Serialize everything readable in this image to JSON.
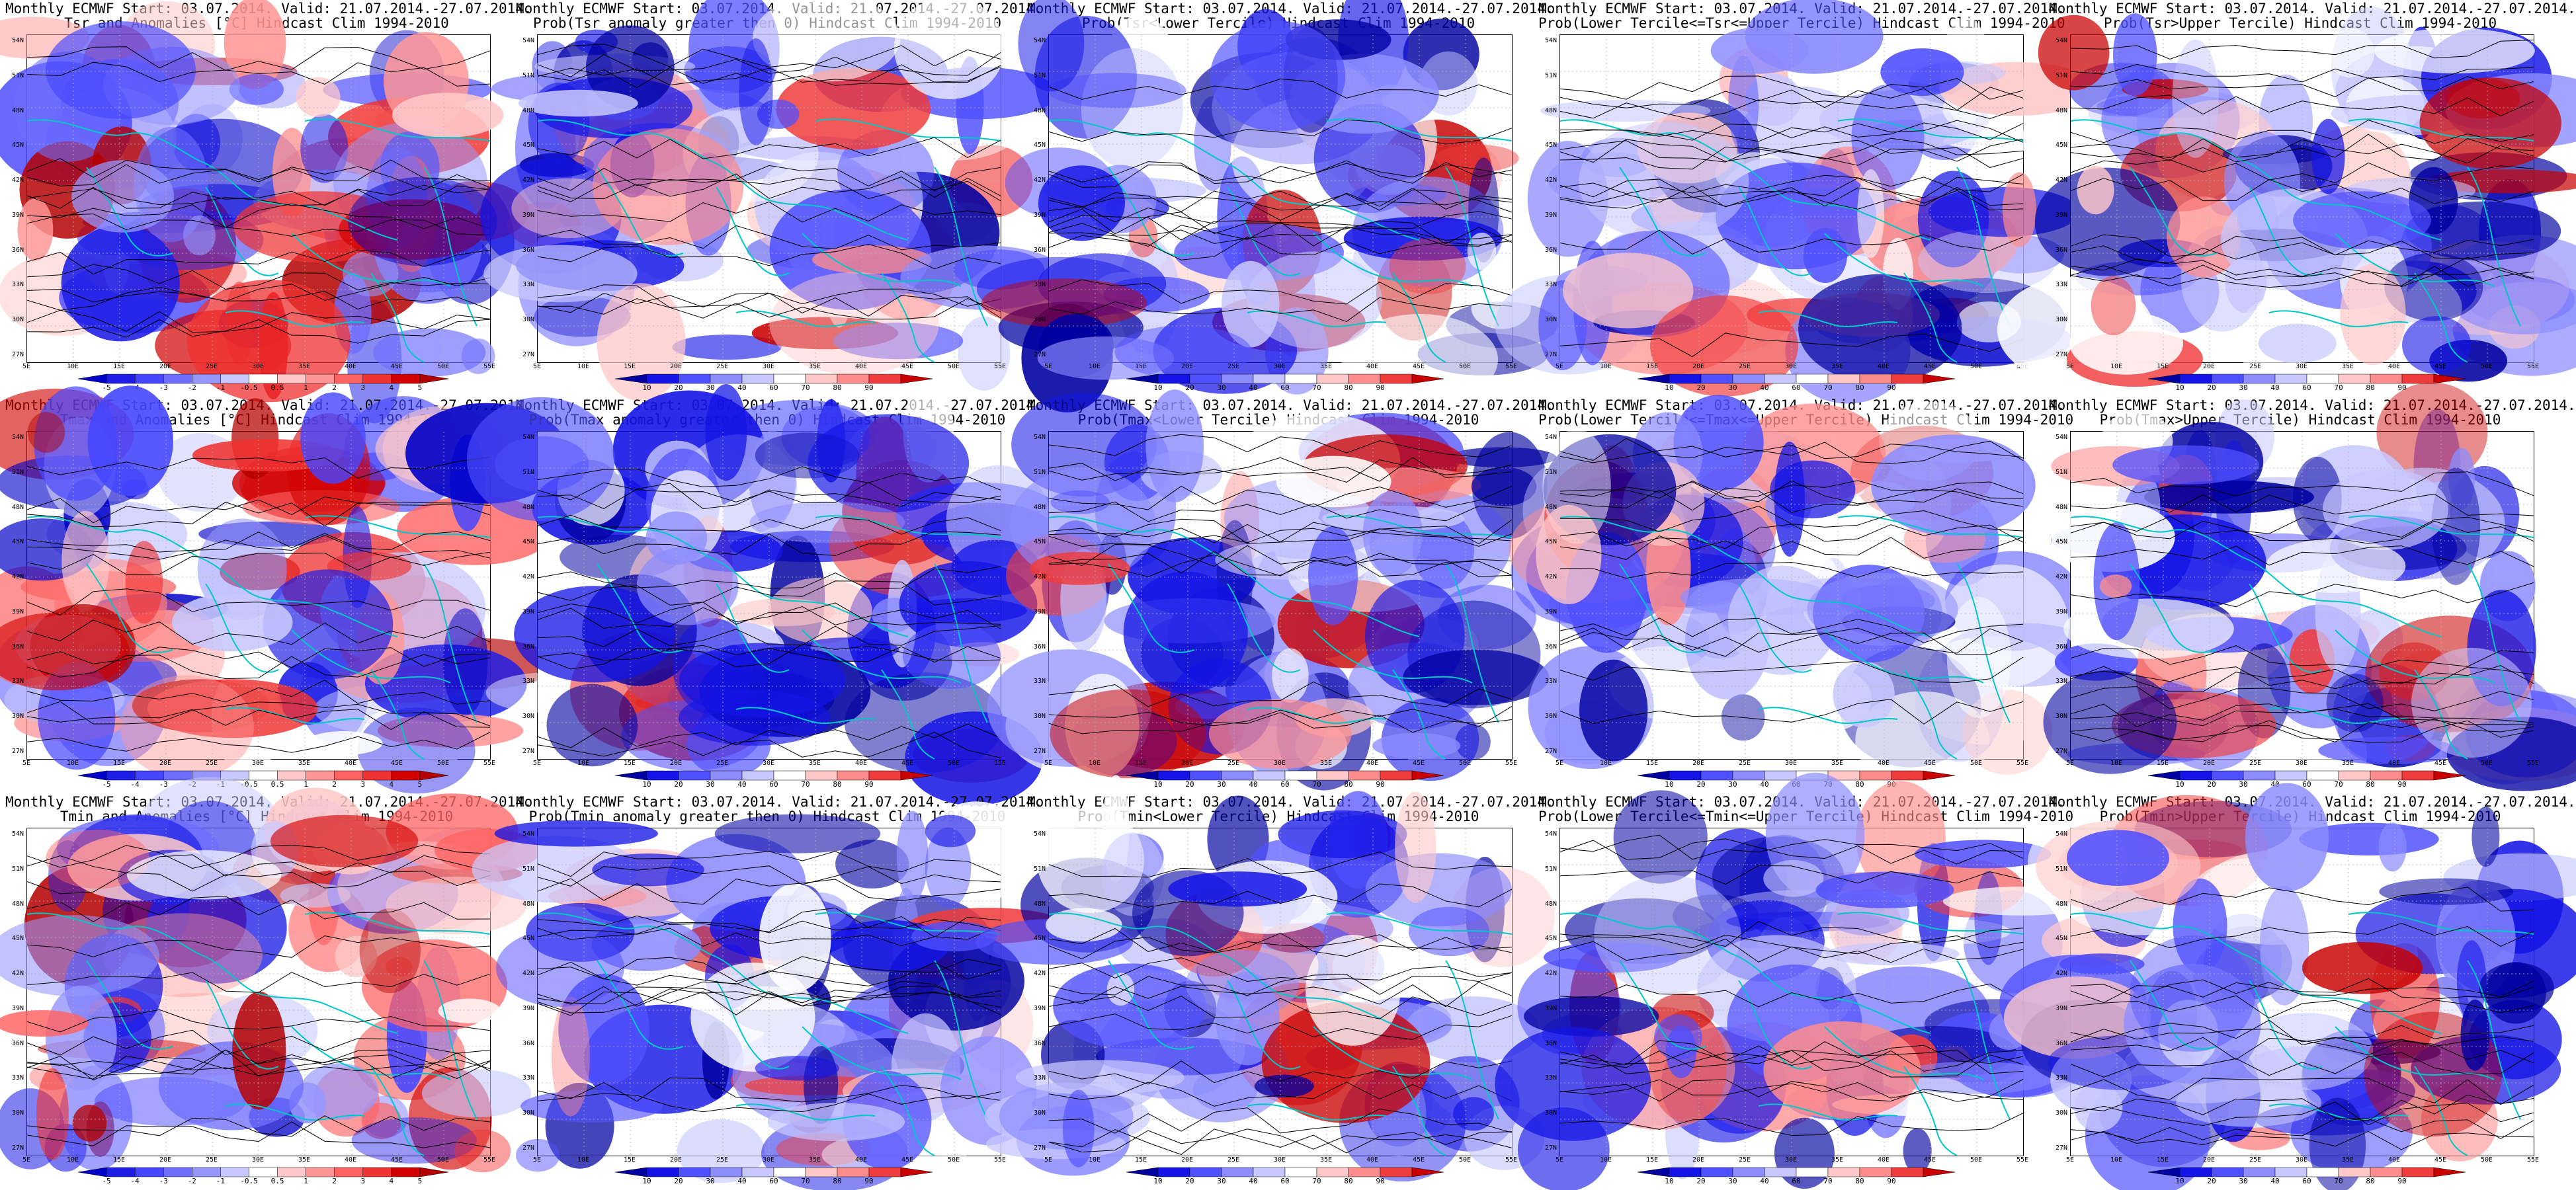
{
  "panels": [
    {
      "title1": "Monthly ECMWF Start: 03.07.2014. Valid: 21.07.2014.-27.07.2014.",
      "title2": "Tsr and Anomalies [°C] Hindcast Clim 1994-2010",
      "kind": "anom"
    },
    {
      "title1": "Monthly ECMWF Start: 03.07.2014. Valid: 21.07.2014.-27.07.2014.",
      "title2": "Prob(Tsr anomaly greater then 0) Hindcast Clim 1994-2010",
      "kind": "prob"
    },
    {
      "title1": "Monthly ECMWF Start: 03.07.2014. Valid: 21.07.2014.-27.07.2014.",
      "title2": "Prob(Tsr<Lower Tercile) Hindcast Clim 1994-2010",
      "kind": "prob"
    },
    {
      "title1": "Monthly ECMWF Start: 03.07.2014. Valid: 21.07.2014.-27.07.2014.",
      "title2": "Prob(Lower Tercile<=Tsr<=Upper Tercile) Hindcast Clim 1994-2010",
      "kind": "prob"
    },
    {
      "title1": "Monthly ECMWF Start: 03.07.2014. Valid: 21.07.2014.-27.07.2014.",
      "title2": "Prob(Tsr>Upper Tercile) Hindcast Clim 1994-2010",
      "kind": "prob"
    },
    {
      "title1": "Monthly ECMWF Start: 03.07.2014. Valid: 21.07.2014.-27.07.2014.",
      "title2": "Tmax and Anomalies [°C] Hindcast Clim 1994-2010",
      "kind": "anom"
    },
    {
      "title1": "Monthly ECMWF Start: 03.07.2014. Valid: 21.07.2014.-27.07.2014.",
      "title2": "Prob(Tmax anomaly greater then 0) Hindcast Clim 1994-2010",
      "kind": "prob"
    },
    {
      "title1": "Monthly ECMWF Start: 03.07.2014. Valid: 21.07.2014.-27.07.2014.",
      "title2": "Prob(Tmax<Lower Tercile) Hindcast Clim 1994-2010",
      "kind": "prob"
    },
    {
      "title1": "Monthly ECMWF Start: 03.07.2014. Valid: 21.07.2014.-27.07.2014.",
      "title2": "Prob(Lower Tercile<=Tmax<=Upper Tercile) Hindcast Clim 1994-2010",
      "kind": "prob"
    },
    {
      "title1": "Monthly ECMWF Start: 03.07.2014. Valid: 21.07.2014.-27.07.2014.",
      "title2": "Prob(Tmax>Upper Tercile) Hindcast Clim 1994-2010",
      "kind": "prob"
    },
    {
      "title1": "Monthly ECMWF Start: 03.07.2014. Valid: 21.07.2014.-27.07.2014.",
      "title2": "Tmin and Anomalies [°C] Hindcast Clim 1994-2010",
      "kind": "anom"
    },
    {
      "title1": "Monthly ECMWF Start: 03.07.2014. Valid: 21.07.2014.-27.07.2014.",
      "title2": "Prob(Tmin anomaly greater then 0) Hindcast Clim 1994-2010",
      "kind": "prob"
    },
    {
      "title1": "Monthly ECMWF Start: 03.07.2014. Valid: 21.07.2014.-27.07.2014.",
      "title2": "Prob(Tmin<Lower Tercile) Hindcast Clim 1994-2010",
      "kind": "prob"
    },
    {
      "title1": "Monthly ECMWF Start: 03.07.2014. Valid: 21.07.2014.-27.07.2014.",
      "title2": "Prob(Lower Tercile<=Tmin<=Upper Tercile) Hindcast Clim 1994-2010",
      "kind": "prob"
    },
    {
      "title1": "Monthly ECMWF Start: 03.07.2014. Valid: 21.07.2014.-27.07.2014.",
      "title2": "Prob(Tmin>Upper Tercile) Hindcast Clim 1994-2010",
      "kind": "prob"
    }
  ],
  "lat_labels": [
    "54N",
    "51N",
    "48N",
    "45N",
    "42N",
    "39N",
    "36N",
    "33N",
    "30N",
    "27N"
  ],
  "lon_labels": [
    "5E",
    "10E",
    "15E",
    "20E",
    "25E",
    "30E",
    "35E",
    "40E",
    "45E",
    "50E",
    "55E"
  ],
  "anom_colorbar": {
    "labels": [
      "-5",
      "-4",
      "-3",
      "-2",
      "-1",
      "-0.5",
      "0.5",
      "1",
      "2",
      "3",
      "4",
      "5"
    ],
    "colors": [
      "#0000c8",
      "#1e1ee6",
      "#4646ff",
      "#6e6eff",
      "#9696ff",
      "#c8c8ff",
      "#ffffff",
      "#ffc8c8",
      "#ff9696",
      "#ff6464",
      "#f03232",
      "#d20000",
      "#b40000"
    ]
  },
  "prob_colorbar": {
    "labels": [
      "10",
      "20",
      "30",
      "40",
      "60",
      "70",
      "80",
      "90"
    ],
    "colors": [
      "#0000a0",
      "#1414e6",
      "#5050ff",
      "#8c8cff",
      "#c8c8ff",
      "#ffffff",
      "#ffc8c8",
      "#ff8c8c",
      "#f03c3c",
      "#c80000"
    ]
  },
  "colors": {
    "coast": "#00c8c8",
    "contour": "#000000",
    "grid": "#b4b4b4"
  }
}
